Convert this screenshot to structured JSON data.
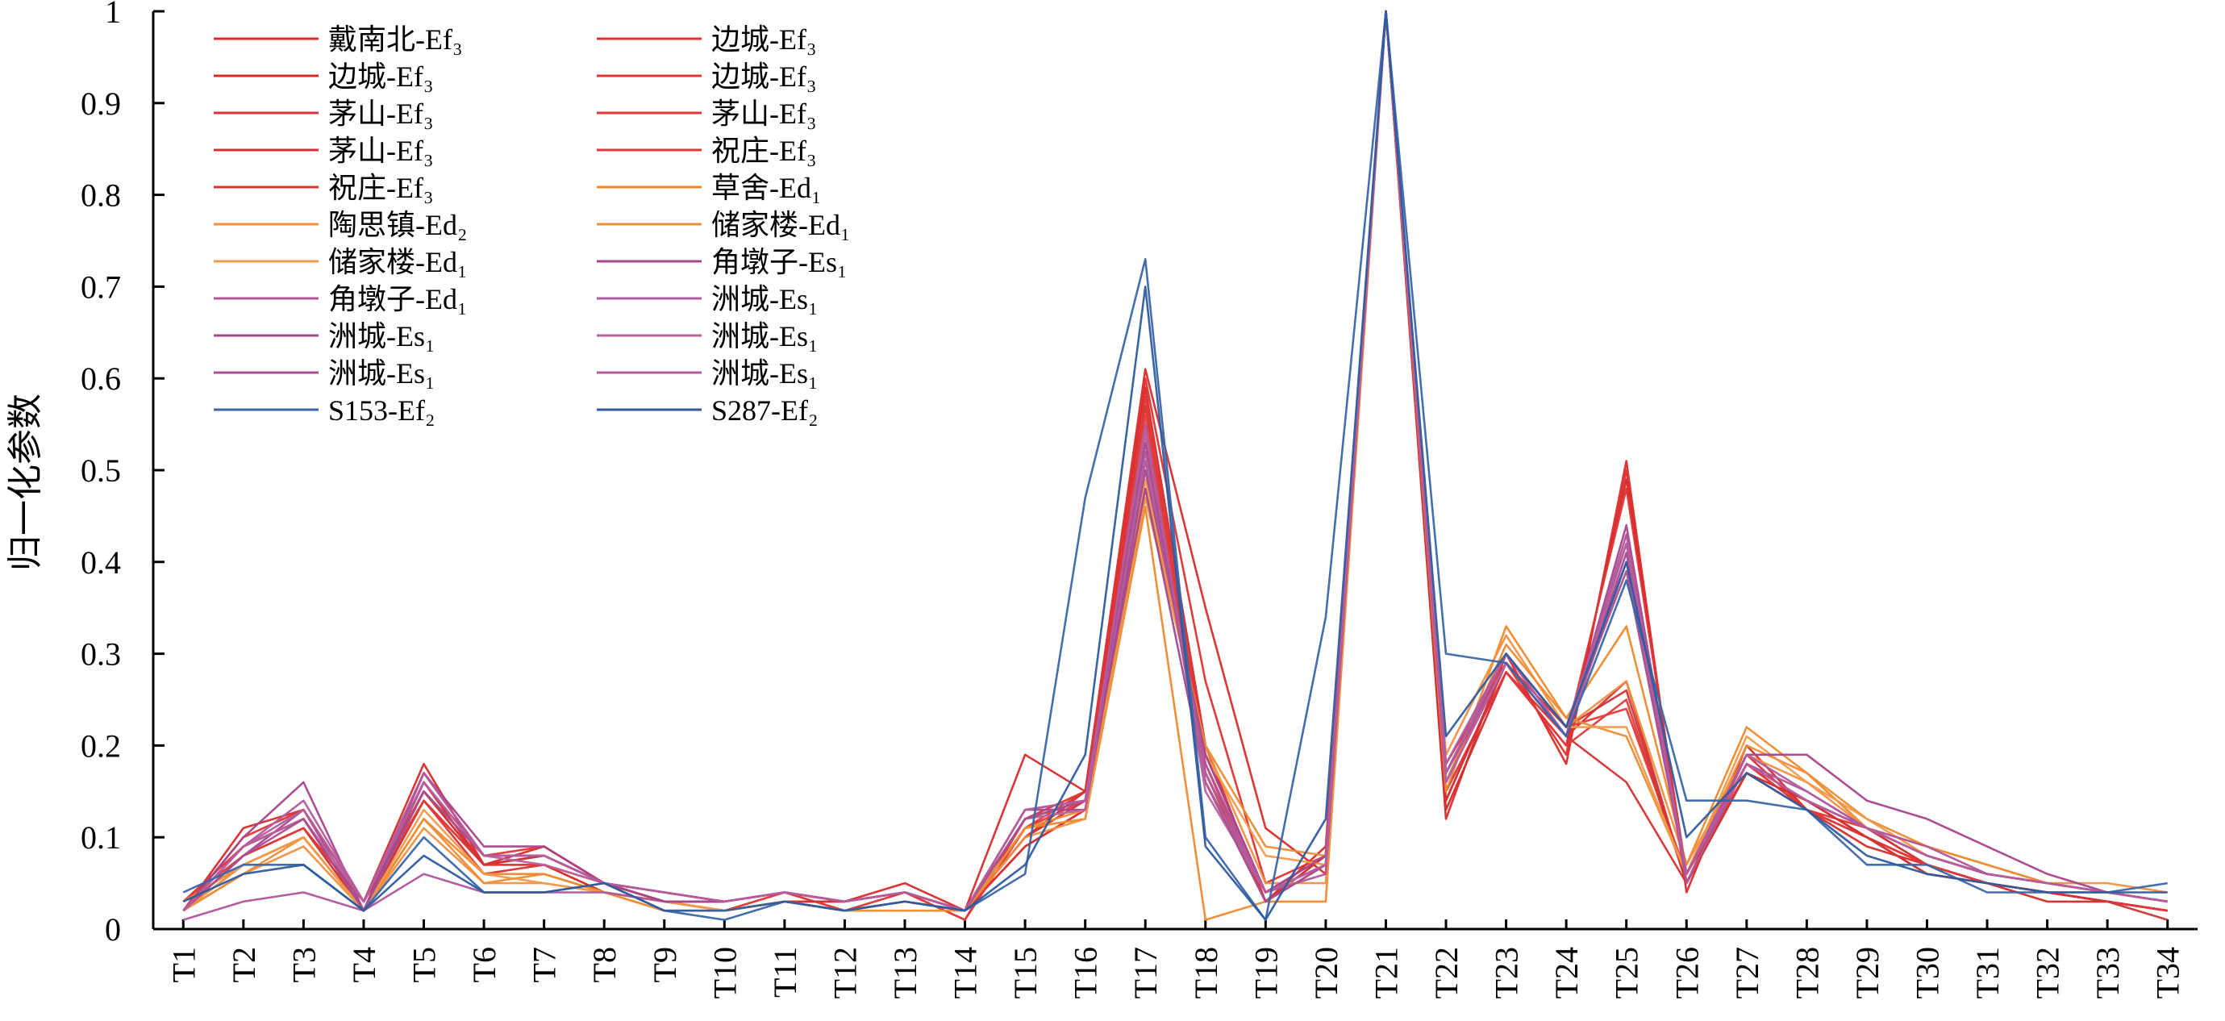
{
  "chart_data": {
    "type": "line",
    "title": "",
    "xlabel": "",
    "ylabel": "归一化参数",
    "ylim": [
      0,
      1
    ],
    "yticks": [
      0,
      0.1,
      0.2,
      0.3,
      0.4,
      0.5,
      0.6,
      0.7,
      0.8,
      0.9,
      1
    ],
    "ytick_labels": [
      "0",
      "0.1",
      "0.2",
      "0.3",
      "0.4",
      "0.5",
      "0.6",
      "0.7",
      "0.8",
      "0.9",
      "1"
    ],
    "categories": [
      "T1",
      "T2",
      "T3",
      "T4",
      "T5",
      "T6",
      "T7",
      "T8",
      "T9",
      "T10",
      "T11",
      "T12",
      "T13",
      "T14",
      "T15",
      "T16",
      "T17",
      "T18",
      "T19",
      "T20",
      "T21",
      "T22",
      "T23",
      "T24",
      "T25",
      "T26",
      "T27",
      "T28",
      "T29",
      "T30",
      "T31",
      "T32",
      "T33",
      "T34"
    ],
    "grid": false,
    "legend": {
      "placement": "top-left",
      "columns": 2
    },
    "series": [
      {
        "name": "戴南北-Ef₃",
        "color": "#d92b2b",
        "values": [
          0.02,
          0.11,
          0.13,
          0.03,
          0.18,
          0.07,
          0.09,
          0.05,
          0.03,
          0.03,
          0.04,
          0.03,
          0.05,
          0.02,
          0.19,
          0.15,
          0.61,
          0.35,
          0.11,
          0.06,
          1.0,
          0.12,
          0.3,
          0.18,
          0.51,
          0.04,
          0.2,
          0.13,
          0.09,
          0.07,
          0.05,
          0.04,
          0.03,
          0.02
        ]
      },
      {
        "name": "边城-Ef₃",
        "color": "#e03030",
        "values": [
          0.03,
          0.09,
          0.12,
          0.02,
          0.17,
          0.08,
          0.08,
          0.05,
          0.03,
          0.02,
          0.04,
          0.02,
          0.04,
          0.01,
          0.12,
          0.15,
          0.6,
          0.27,
          0.05,
          0.08,
          1.0,
          0.18,
          0.29,
          0.19,
          0.5,
          0.05,
          0.19,
          0.13,
          0.1,
          0.07,
          0.05,
          0.04,
          0.03,
          0.02
        ]
      },
      {
        "name": "边城-Ef₃",
        "color": "#d42a2a",
        "values": [
          0.02,
          0.08,
          0.11,
          0.02,
          0.16,
          0.07,
          0.08,
          0.05,
          0.03,
          0.03,
          0.04,
          0.03,
          0.04,
          0.02,
          0.1,
          0.14,
          0.59,
          0.2,
          0.03,
          0.09,
          1.0,
          0.13,
          0.28,
          0.2,
          0.49,
          0.05,
          0.18,
          0.14,
          0.1,
          0.06,
          0.05,
          0.03,
          0.03,
          0.02
        ]
      },
      {
        "name": "边城-Ef₃",
        "color": "#e23535",
        "values": [
          0.02,
          0.1,
          0.13,
          0.03,
          0.15,
          0.08,
          0.09,
          0.05,
          0.04,
          0.03,
          0.04,
          0.03,
          0.04,
          0.02,
          0.11,
          0.15,
          0.58,
          0.19,
          0.04,
          0.08,
          1.0,
          0.14,
          0.29,
          0.21,
          0.48,
          0.06,
          0.18,
          0.13,
          0.11,
          0.07,
          0.05,
          0.04,
          0.03,
          0.02
        ]
      },
      {
        "name": "茅山-Ef₃",
        "color": "#d93333",
        "values": [
          0.02,
          0.09,
          0.12,
          0.02,
          0.14,
          0.07,
          0.08,
          0.05,
          0.03,
          0.02,
          0.03,
          0.03,
          0.04,
          0.02,
          0.1,
          0.14,
          0.57,
          0.18,
          0.03,
          0.07,
          1.0,
          0.15,
          0.28,
          0.21,
          0.27,
          0.05,
          0.17,
          0.14,
          0.1,
          0.07,
          0.05,
          0.04,
          0.03,
          0.02
        ]
      },
      {
        "name": "茅山-Ef₃",
        "color": "#e43a3a",
        "values": [
          0.03,
          0.08,
          0.11,
          0.03,
          0.15,
          0.07,
          0.07,
          0.04,
          0.03,
          0.03,
          0.04,
          0.02,
          0.03,
          0.02,
          0.09,
          0.13,
          0.56,
          0.17,
          0.04,
          0.07,
          1.0,
          0.16,
          0.3,
          0.22,
          0.24,
          0.06,
          0.17,
          0.13,
          0.1,
          0.06,
          0.05,
          0.04,
          0.03,
          0.02
        ]
      },
      {
        "name": "茅山-Ef₃",
        "color": "#d63030",
        "values": [
          0.02,
          0.07,
          0.1,
          0.02,
          0.14,
          0.06,
          0.07,
          0.04,
          0.03,
          0.02,
          0.03,
          0.02,
          0.03,
          0.02,
          0.09,
          0.13,
          0.55,
          0.16,
          0.03,
          0.08,
          1.0,
          0.17,
          0.29,
          0.21,
          0.16,
          0.05,
          0.18,
          0.14,
          0.11,
          0.07,
          0.05,
          0.04,
          0.03,
          0.02
        ]
      },
      {
        "name": "祝庄-Ef₃",
        "color": "#e03a3a",
        "values": [
          0.02,
          0.08,
          0.11,
          0.03,
          0.14,
          0.07,
          0.07,
          0.05,
          0.03,
          0.03,
          0.04,
          0.03,
          0.04,
          0.01,
          0.11,
          0.14,
          0.54,
          0.18,
          0.04,
          0.07,
          1.0,
          0.15,
          0.28,
          0.2,
          0.25,
          0.05,
          0.18,
          0.13,
          0.1,
          0.07,
          0.05,
          0.04,
          0.03,
          0.02
        ]
      },
      {
        "name": "祝庄-Ef₃",
        "color": "#cf3535",
        "values": [
          0.02,
          0.09,
          0.12,
          0.02,
          0.15,
          0.07,
          0.08,
          0.05,
          0.03,
          0.02,
          0.03,
          0.03,
          0.04,
          0.02,
          0.1,
          0.15,
          0.53,
          0.17,
          0.03,
          0.08,
          1.0,
          0.14,
          0.29,
          0.22,
          0.26,
          0.05,
          0.17,
          0.14,
          0.1,
          0.06,
          0.05,
          0.04,
          0.03,
          0.01
        ]
      },
      {
        "name": "草舍-Ed₁",
        "color": "#ee8a2e",
        "values": [
          0.03,
          0.07,
          0.1,
          0.02,
          0.12,
          0.06,
          0.06,
          0.04,
          0.03,
          0.02,
          0.03,
          0.02,
          0.02,
          0.02,
          0.11,
          0.12,
          0.46,
          0.01,
          0.03,
          0.03,
          1.0,
          0.15,
          0.33,
          0.23,
          0.33,
          0.07,
          0.22,
          0.17,
          0.11,
          0.08,
          0.06,
          0.05,
          0.04,
          0.03
        ]
      },
      {
        "name": "陶思镇-Ed₂",
        "color": "#f09040",
        "values": [
          0.02,
          0.06,
          0.09,
          0.02,
          0.11,
          0.05,
          0.05,
          0.04,
          0.02,
          0.02,
          0.03,
          0.02,
          0.03,
          0.02,
          0.1,
          0.12,
          0.47,
          0.2,
          0.05,
          0.05,
          1.0,
          0.19,
          0.32,
          0.22,
          0.27,
          0.07,
          0.19,
          0.16,
          0.11,
          0.09,
          0.07,
          0.05,
          0.05,
          0.04
        ]
      },
      {
        "name": "储家楼-Ed₁",
        "color": "#ec8c35",
        "values": [
          0.02,
          0.06,
          0.1,
          0.02,
          0.12,
          0.05,
          0.06,
          0.04,
          0.02,
          0.02,
          0.03,
          0.02,
          0.03,
          0.02,
          0.11,
          0.13,
          0.48,
          0.2,
          0.09,
          0.08,
          1.0,
          0.16,
          0.31,
          0.23,
          0.21,
          0.06,
          0.2,
          0.17,
          0.12,
          0.09,
          0.07,
          0.05,
          0.04,
          0.03
        ]
      },
      {
        "name": "储家楼-Ed₁",
        "color": "#f29a4a",
        "values": [
          0.02,
          0.07,
          0.1,
          0.02,
          0.13,
          0.06,
          0.05,
          0.04,
          0.03,
          0.02,
          0.03,
          0.02,
          0.03,
          0.02,
          0.12,
          0.13,
          0.49,
          0.19,
          0.08,
          0.07,
          1.0,
          0.17,
          0.3,
          0.22,
          0.22,
          0.06,
          0.21,
          0.16,
          0.12,
          0.08,
          0.06,
          0.05,
          0.04,
          0.03
        ]
      },
      {
        "name": "角墩子-Es₁",
        "color": "#a8458c",
        "values": [
          0.02,
          0.1,
          0.16,
          0.02,
          0.17,
          0.09,
          0.09,
          0.05,
          0.04,
          0.03,
          0.04,
          0.03,
          0.04,
          0.02,
          0.13,
          0.13,
          0.5,
          0.19,
          0.04,
          0.07,
          1.0,
          0.16,
          0.29,
          0.21,
          0.44,
          0.06,
          0.19,
          0.19,
          0.14,
          0.12,
          0.09,
          0.06,
          0.04,
          0.03
        ]
      },
      {
        "name": "角墩子-Ed₁",
        "color": "#b0559a",
        "values": [
          0.01,
          0.03,
          0.04,
          0.02,
          0.06,
          0.04,
          0.04,
          0.04,
          0.03,
          0.03,
          0.04,
          0.03,
          0.04,
          0.02,
          0.13,
          0.14,
          0.51,
          0.18,
          0.04,
          0.06,
          1.0,
          0.17,
          0.29,
          0.21,
          0.43,
          0.05,
          0.18,
          0.15,
          0.11,
          0.09,
          0.06,
          0.05,
          0.04,
          0.03
        ]
      },
      {
        "name": "洲城-Es₁",
        "color": "#b35aa0",
        "values": [
          0.02,
          0.09,
          0.14,
          0.03,
          0.17,
          0.08,
          0.08,
          0.05,
          0.04,
          0.03,
          0.04,
          0.03,
          0.04,
          0.02,
          0.12,
          0.14,
          0.52,
          0.17,
          0.04,
          0.07,
          1.0,
          0.18,
          0.3,
          0.22,
          0.42,
          0.06,
          0.19,
          0.15,
          0.11,
          0.08,
          0.06,
          0.05,
          0.04,
          0.03
        ]
      },
      {
        "name": "洲城-Es₁",
        "color": "#a3498e",
        "values": [
          0.02,
          0.08,
          0.13,
          0.02,
          0.16,
          0.08,
          0.08,
          0.05,
          0.03,
          0.03,
          0.04,
          0.03,
          0.04,
          0.02,
          0.12,
          0.14,
          0.48,
          0.16,
          0.04,
          0.08,
          1.0,
          0.17,
          0.3,
          0.21,
          0.41,
          0.06,
          0.18,
          0.14,
          0.11,
          0.08,
          0.06,
          0.05,
          0.04,
          0.03
        ]
      },
      {
        "name": "洲城-Es₁",
        "color": "#b8629f",
        "values": [
          0.02,
          0.09,
          0.12,
          0.03,
          0.16,
          0.08,
          0.07,
          0.05,
          0.04,
          0.03,
          0.04,
          0.03,
          0.04,
          0.02,
          0.12,
          0.13,
          0.54,
          0.15,
          0.04,
          0.07,
          1.0,
          0.16,
          0.29,
          0.21,
          0.4,
          0.06,
          0.18,
          0.14,
          0.11,
          0.08,
          0.06,
          0.05,
          0.04,
          0.03
        ]
      },
      {
        "name": "洲城-Es₁",
        "color": "#a94f91",
        "values": [
          0.02,
          0.08,
          0.12,
          0.02,
          0.15,
          0.08,
          0.08,
          0.05,
          0.04,
          0.03,
          0.04,
          0.03,
          0.04,
          0.02,
          0.12,
          0.14,
          0.53,
          0.16,
          0.03,
          0.07,
          1.0,
          0.17,
          0.3,
          0.22,
          0.39,
          0.06,
          0.18,
          0.14,
          0.11,
          0.08,
          0.06,
          0.05,
          0.04,
          0.03
        ]
      },
      {
        "name": "洲城-Es₁",
        "color": "#b65c9c",
        "values": [
          0.02,
          0.09,
          0.13,
          0.03,
          0.16,
          0.08,
          0.08,
          0.05,
          0.04,
          0.03,
          0.04,
          0.03,
          0.04,
          0.02,
          0.13,
          0.14,
          0.55,
          0.16,
          0.04,
          0.07,
          1.0,
          0.17,
          0.3,
          0.21,
          0.42,
          0.06,
          0.18,
          0.14,
          0.11,
          0.08,
          0.06,
          0.05,
          0.04,
          0.03
        ]
      },
      {
        "name": "S153-Ef₂",
        "color": "#3a66a8",
        "values": [
          0.04,
          0.07,
          0.07,
          0.02,
          0.1,
          0.04,
          0.04,
          0.05,
          0.02,
          0.01,
          0.03,
          0.02,
          0.03,
          0.02,
          0.06,
          0.47,
          0.73,
          0.1,
          0.01,
          0.34,
          1.0,
          0.3,
          0.29,
          0.21,
          0.38,
          0.14,
          0.14,
          0.13,
          0.07,
          0.07,
          0.04,
          0.04,
          0.04,
          0.05
        ]
      },
      {
        "name": "S287-Ef₂",
        "color": "#2f5c9e",
        "values": [
          0.03,
          0.06,
          0.07,
          0.02,
          0.08,
          0.04,
          0.04,
          0.05,
          0.02,
          0.02,
          0.03,
          0.02,
          0.03,
          0.02,
          0.07,
          0.19,
          0.7,
          0.09,
          0.01,
          0.12,
          1.0,
          0.21,
          0.3,
          0.22,
          0.4,
          0.1,
          0.17,
          0.13,
          0.08,
          0.06,
          0.05,
          0.04,
          0.04,
          0.04
        ]
      }
    ]
  }
}
